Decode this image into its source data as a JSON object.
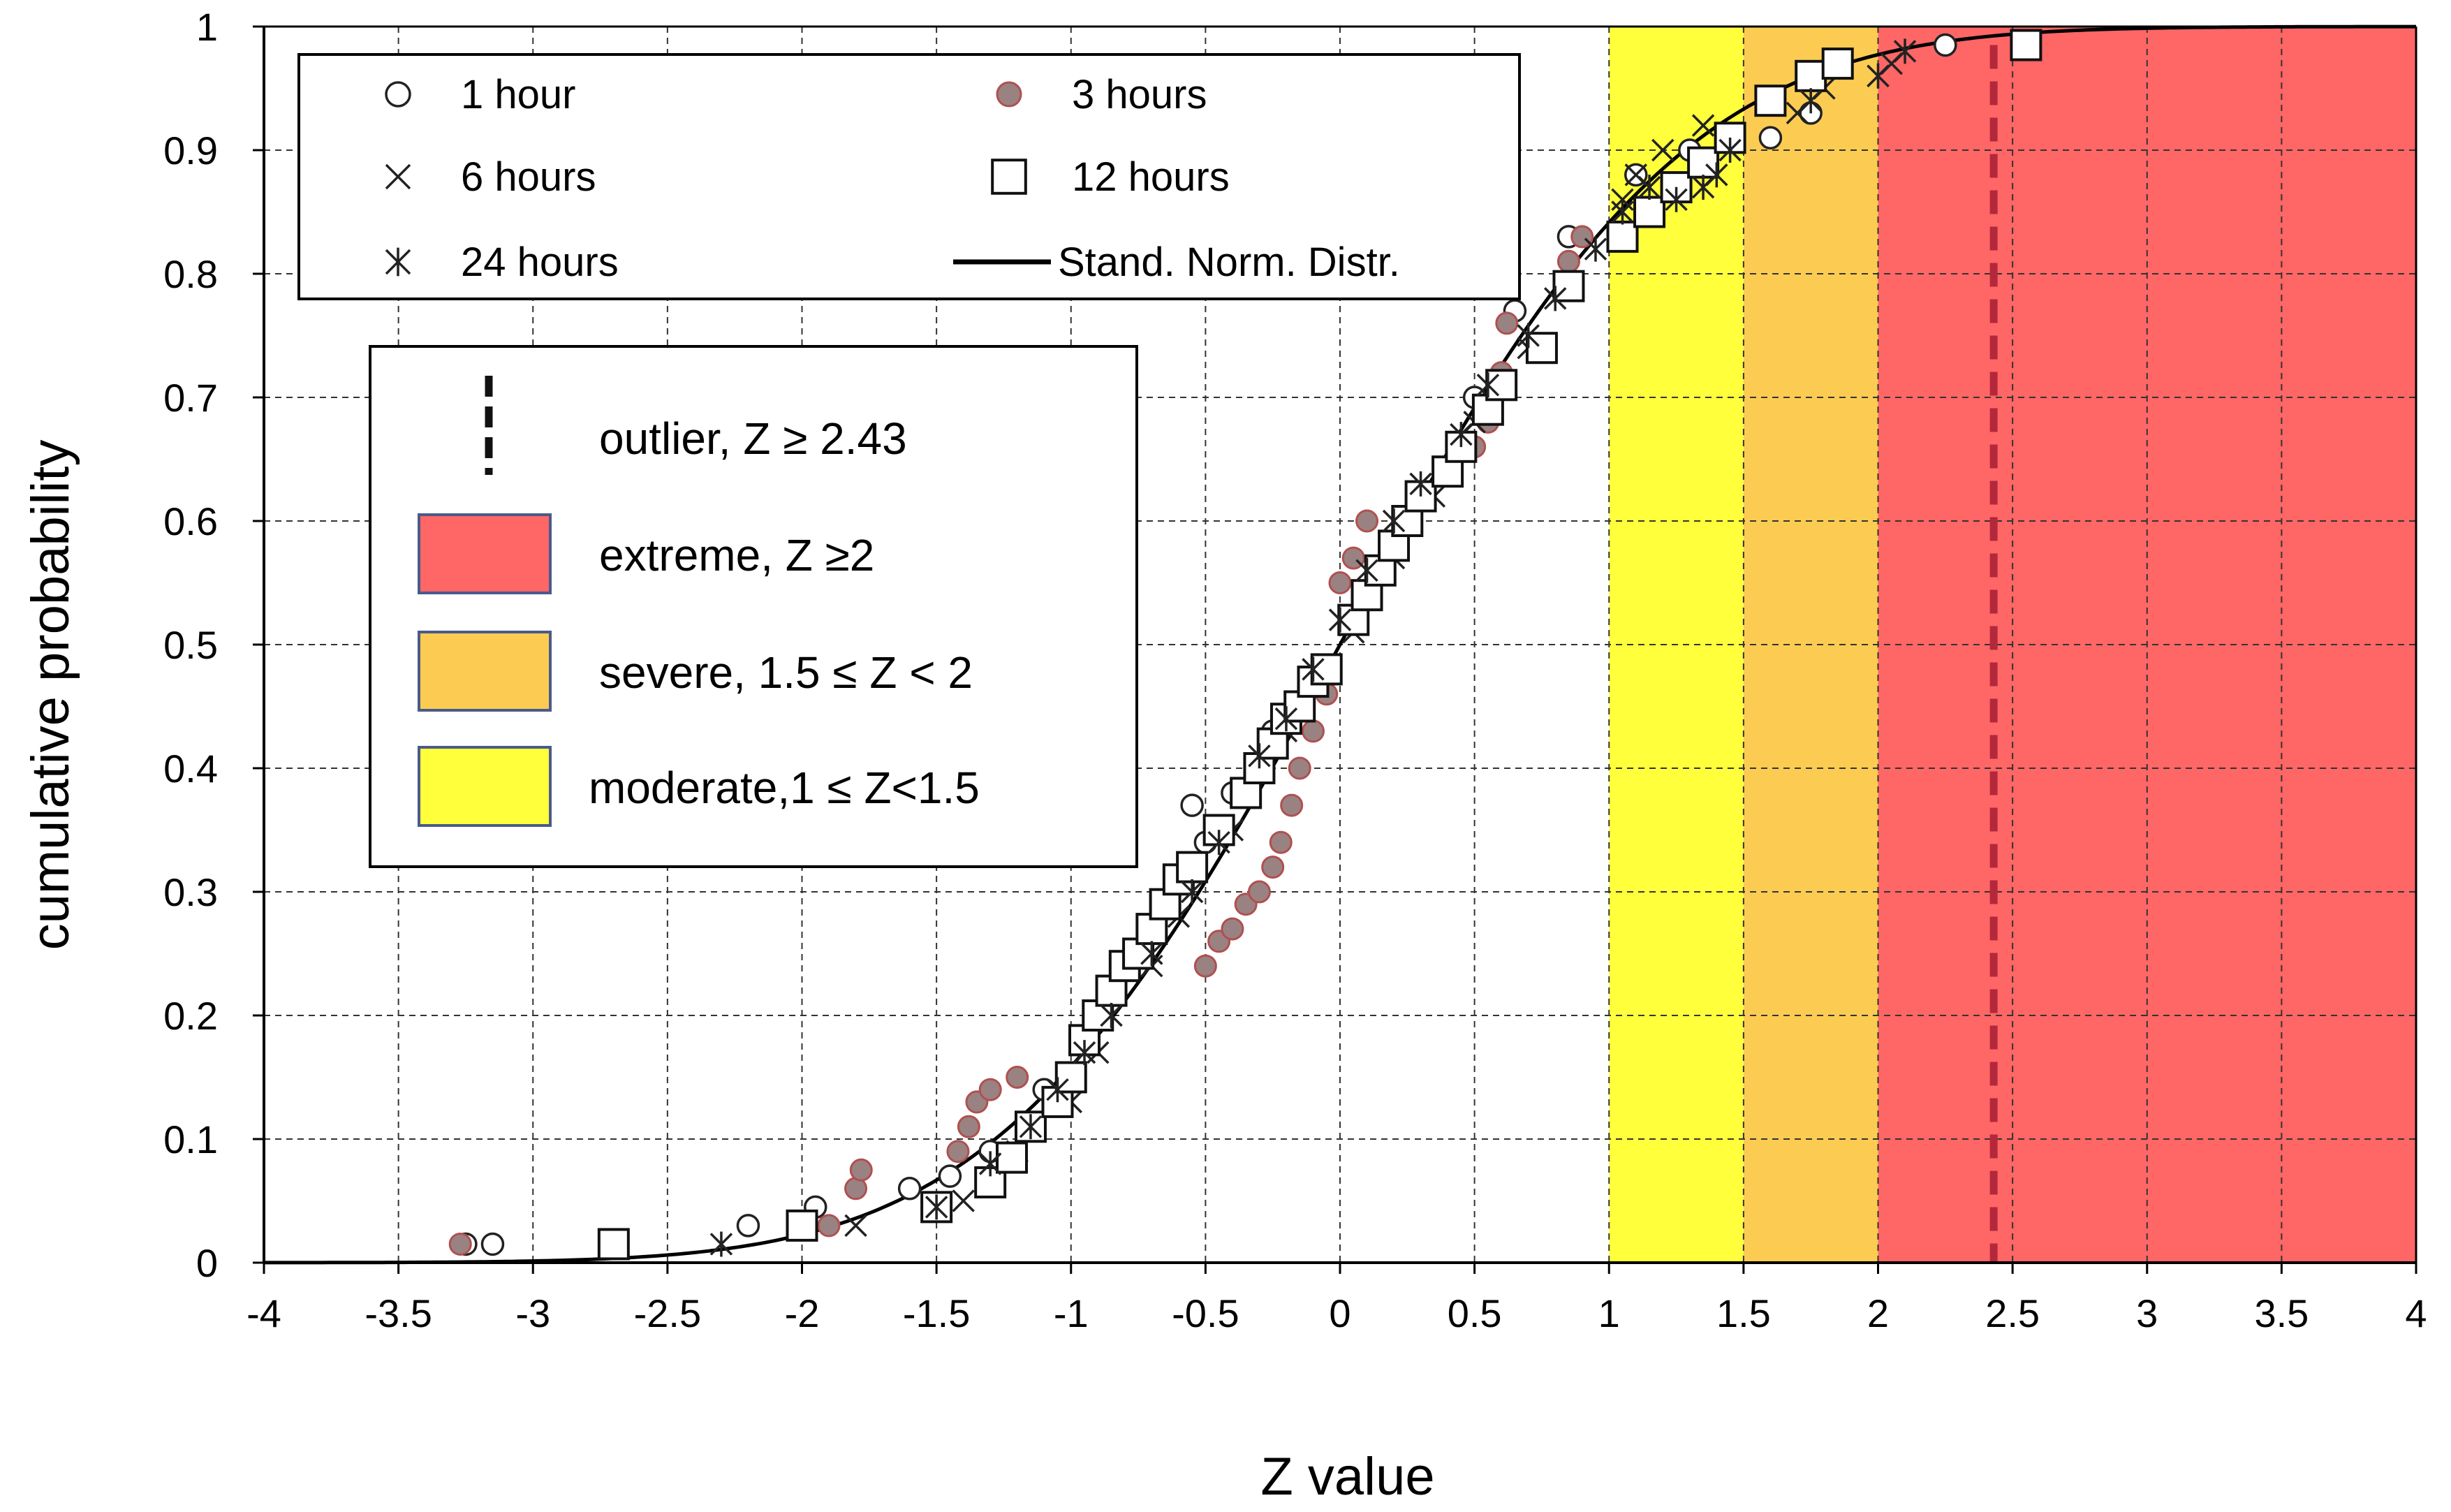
{
  "chart_data": {
    "type": "scatter",
    "xlabel": "Z value",
    "ylabel": "cumulative probability",
    "xlim": [
      -4,
      4
    ],
    "ylim": [
      0,
      1
    ],
    "x_ticks": [
      "-4",
      "-3.5",
      "-3",
      "-2.5",
      "-2",
      "-1.5",
      "-1",
      "-0.5",
      "0",
      "0.5",
      "1",
      "1.5",
      "2",
      "2.5",
      "3",
      "3.5",
      "4"
    ],
    "y_ticks": [
      "0",
      "0.1",
      "0.2",
      "0.3",
      "0.4",
      "0.5",
      "0.6",
      "0.7",
      "0.8",
      "0.9",
      "1"
    ],
    "grid": true,
    "colors": {
      "moderate": "#ffff3c",
      "severe": "#fccc52",
      "extreme": "#ff6666",
      "outlier_line": "#b4283c",
      "series_3h_fill": "#9a8282",
      "series_3h_stroke": "#b05050",
      "grid": "#333333"
    },
    "bands": [
      {
        "label": "moderate,1 ≤ Z<1.5",
        "from": 1.0,
        "to": 1.5,
        "color": "#ffff3c"
      },
      {
        "label": "severe, 1.5 ≤ Z < 2",
        "from": 1.5,
        "to": 2.0,
        "color": "#fccc52"
      },
      {
        "label": "extreme, Z ≥2",
        "from": 2.0,
        "to": 4.0,
        "color": "#ff6666"
      }
    ],
    "outlier": {
      "label": "outlier, Z ≥ 2.43",
      "x": 2.43
    },
    "legend": {
      "placement": "top-left",
      "entries": [
        {
          "name": "1 hour",
          "marker": "circle"
        },
        {
          "name": "3 hours",
          "marker": "filled-circle"
        },
        {
          "name": "6 hours",
          "marker": "x"
        },
        {
          "name": "12 hours",
          "marker": "square"
        },
        {
          "name": "24 hours",
          "marker": "asterisk"
        },
        {
          "name": "Stand. Norm. Distr.",
          "marker": "line"
        }
      ]
    },
    "band_legend": {
      "placement": "left",
      "entries": [
        {
          "name": "outlier, Z ≥ 2.43",
          "key": "outlier"
        },
        {
          "name": "extreme, Z ≥2",
          "key": "extreme"
        },
        {
          "name": "severe, 1.5 ≤ Z < 2",
          "key": "severe"
        },
        {
          "name": "moderate,1 ≤ Z<1.5",
          "key": "moderate"
        }
      ]
    },
    "series": [
      {
        "name": "1 hour",
        "marker": "circle",
        "x": [
          -3.25,
          -3.15,
          -2.2,
          -1.95,
          -1.6,
          -1.45,
          -1.3,
          -1.1,
          -0.9,
          -0.75,
          -0.55,
          -0.5,
          -0.4,
          -0.25,
          -0.1,
          0.05,
          0.25,
          0.5,
          0.65,
          0.85,
          1.1,
          1.3,
          1.6,
          1.75,
          2.25
        ],
        "y": [
          0.015,
          0.015,
          0.03,
          0.045,
          0.06,
          0.07,
          0.09,
          0.14,
          0.2,
          0.25,
          0.37,
          0.34,
          0.38,
          0.43,
          0.47,
          0.52,
          0.6,
          0.7,
          0.77,
          0.83,
          0.88,
          0.9,
          0.91,
          0.93,
          0.985
        ]
      },
      {
        "name": "3 hours",
        "marker": "filled-circle",
        "x": [
          -3.27,
          -1.9,
          -1.8,
          -1.78,
          -1.42,
          -1.38,
          -1.35,
          -1.3,
          -1.2,
          -0.5,
          -0.45,
          -0.4,
          -0.35,
          -0.3,
          -0.25,
          -0.22,
          -0.18,
          -0.15,
          -0.1,
          -0.05,
          0,
          0.05,
          0.1,
          0.3,
          0.4,
          0.5,
          0.55,
          0.6,
          0.62,
          0.85,
          0.9
        ],
        "y": [
          0.015,
          0.03,
          0.06,
          0.075,
          0.09,
          0.11,
          0.13,
          0.14,
          0.15,
          0.24,
          0.26,
          0.27,
          0.29,
          0.3,
          0.32,
          0.34,
          0.37,
          0.4,
          0.43,
          0.46,
          0.55,
          0.57,
          0.6,
          0.62,
          0.64,
          0.66,
          0.68,
          0.72,
          0.76,
          0.81,
          0.83
        ]
      },
      {
        "name": "6 hours",
        "marker": "x",
        "x": [
          -1.8,
          -1.4,
          -1.2,
          -1.0,
          -0.9,
          -0.7,
          -0.6,
          -0.4,
          -0.2,
          0.05,
          0.2,
          0.35,
          0.5,
          0.7,
          0.85,
          1.05,
          1.1,
          1.2,
          1.35,
          1.7,
          1.8,
          2.0,
          2.05
        ],
        "y": [
          0.03,
          0.05,
          0.09,
          0.13,
          0.17,
          0.24,
          0.28,
          0.35,
          0.43,
          0.51,
          0.57,
          0.62,
          0.68,
          0.74,
          0.79,
          0.86,
          0.88,
          0.9,
          0.92,
          0.93,
          0.95,
          0.96,
          0.97
        ]
      },
      {
        "name": "12 hours",
        "marker": "square",
        "x": [
          -2.7,
          -2.0,
          -1.5,
          -1.3,
          -1.22,
          -1.15,
          -1.05,
          -1.0,
          -0.95,
          -0.9,
          -0.85,
          -0.8,
          -0.75,
          -0.7,
          -0.65,
          -0.6,
          -0.55,
          -0.45,
          -0.35,
          -0.3,
          -0.25,
          -0.2,
          -0.15,
          -0.1,
          -0.05,
          0.05,
          0.1,
          0.15,
          0.2,
          0.25,
          0.3,
          0.4,
          0.45,
          0.55,
          0.6,
          0.75,
          0.85,
          1.05,
          1.15,
          1.25,
          1.35,
          1.45,
          1.6,
          1.75,
          1.85,
          2.55
        ],
        "y": [
          0.015,
          0.03,
          0.045,
          0.065,
          0.085,
          0.11,
          0.13,
          0.15,
          0.18,
          0.2,
          0.22,
          0.24,
          0.25,
          0.27,
          0.29,
          0.31,
          0.32,
          0.35,
          0.38,
          0.4,
          0.42,
          0.44,
          0.45,
          0.47,
          0.48,
          0.52,
          0.54,
          0.56,
          0.58,
          0.6,
          0.62,
          0.64,
          0.66,
          0.69,
          0.71,
          0.74,
          0.79,
          0.83,
          0.85,
          0.87,
          0.89,
          0.91,
          0.94,
          0.96,
          0.97,
          0.985
        ]
      },
      {
        "name": "24 hours",
        "marker": "asterisk",
        "x": [
          -2.3,
          -1.5,
          -1.3,
          -1.15,
          -1.05,
          -0.95,
          -0.85,
          -0.7,
          -0.55,
          -0.45,
          -0.3,
          -0.2,
          -0.1,
          0,
          0.1,
          0.2,
          0.3,
          0.45,
          0.55,
          0.7,
          0.8,
          0.95,
          1.05,
          1.15,
          1.25,
          1.35,
          1.4,
          1.45,
          1.75,
          2.0,
          2.1
        ],
        "y": [
          0.015,
          0.045,
          0.08,
          0.11,
          0.14,
          0.17,
          0.2,
          0.25,
          0.3,
          0.34,
          0.41,
          0.44,
          0.48,
          0.52,
          0.56,
          0.6,
          0.63,
          0.67,
          0.71,
          0.75,
          0.78,
          0.82,
          0.85,
          0.87,
          0.86,
          0.87,
          0.88,
          0.9,
          0.94,
          0.96,
          0.98
        ]
      }
    ],
    "normal_cdf": {
      "name": "Stand. Norm. Distr.",
      "x_from": -4,
      "x_to": 4
    }
  }
}
